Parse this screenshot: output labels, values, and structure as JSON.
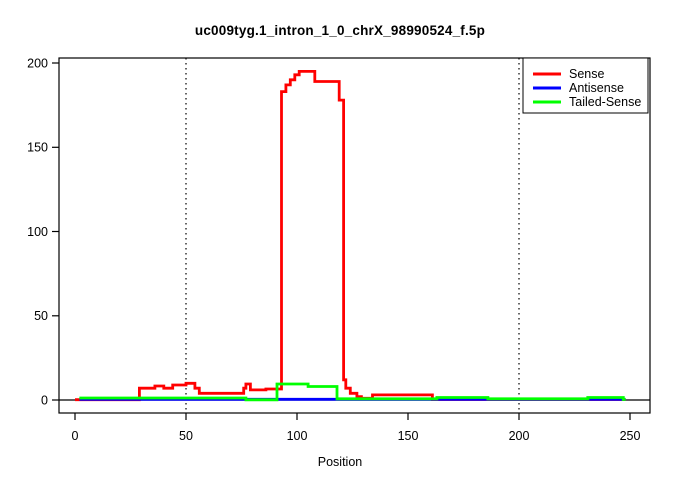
{
  "chart_data": {
    "type": "line",
    "title": "uc009tyg.1_intron_1_0_chrX_98990524_f.5p",
    "xlabel": "Position",
    "ylabel": "",
    "xlim": [
      0,
      250
    ],
    "ylim": [
      0,
      200
    ],
    "x_ticks": [
      0,
      50,
      100,
      150,
      200,
      250
    ],
    "y_ticks": [
      0,
      50,
      100,
      150,
      200
    ],
    "grid": false,
    "reference_vlines": {
      "positions": [
        50,
        200
      ],
      "style": "dotted",
      "color": "#000000"
    },
    "zero_line": {
      "value": 0,
      "color": "#000000"
    },
    "legend": {
      "position": "top-right",
      "entries": [
        {
          "label": "Sense",
          "color": "#FF0000"
        },
        {
          "label": "Antisense",
          "color": "#0000FF"
        },
        {
          "label": "Tailed-Sense",
          "color": "#00FF00"
        }
      ]
    },
    "series": [
      {
        "name": "Sense",
        "color": "#FF0000",
        "interpolation": "step-after",
        "steps": [
          [
            0,
            0.2
          ],
          [
            29,
            7
          ],
          [
            36,
            8.3
          ],
          [
            40,
            7
          ],
          [
            44,
            8.9
          ],
          [
            50,
            9.9
          ],
          [
            54,
            7
          ],
          [
            56,
            4
          ],
          [
            76,
            7
          ],
          [
            77,
            9.5
          ],
          [
            79,
            6
          ],
          [
            86,
            6.5
          ],
          [
            93,
            183
          ],
          [
            95,
            187
          ],
          [
            97,
            190
          ],
          [
            99,
            193
          ],
          [
            101,
            195
          ],
          [
            108,
            189
          ],
          [
            119,
            178
          ],
          [
            121,
            12
          ],
          [
            122,
            7
          ],
          [
            124,
            4
          ],
          [
            127,
            2
          ],
          [
            129,
            1
          ],
          [
            134,
            3
          ],
          [
            161,
            0.3
          ],
          [
            248,
            0.3
          ]
        ]
      },
      {
        "name": "Antisense",
        "color": "#0000FF",
        "interpolation": "step-after",
        "steps": [
          [
            2,
            0.4
          ],
          [
            248,
            0.4
          ]
        ]
      },
      {
        "name": "Tailed-Sense",
        "color": "#00FF00",
        "interpolation": "step-after",
        "steps": [
          [
            2,
            1.2
          ],
          [
            77,
            0.1
          ],
          [
            91,
            9.5
          ],
          [
            105,
            8
          ],
          [
            118,
            0.7
          ],
          [
            163,
            1.5
          ],
          [
            186,
            0.7
          ],
          [
            231,
            1.5
          ],
          [
            247,
            0.3
          ],
          [
            248,
            0.3
          ]
        ]
      }
    ]
  }
}
